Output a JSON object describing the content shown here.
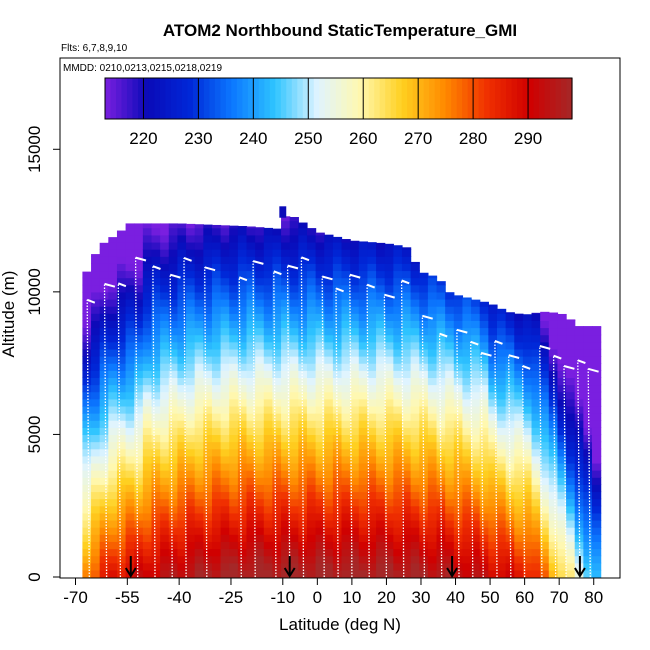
{
  "chart_data": {
    "type": "heatmap",
    "title": "ATOM2 Northbound StaticTemperature_GMI",
    "subtitle_flights": "Flts: 6,7,8,9,10",
    "subtitle_dates": "MMDD: 0210,0213,0215,0218,0219",
    "xlabel": "Latitude (deg N)",
    "ylabel": "Altitude (m)",
    "xlim": [
      -70,
      85
    ],
    "ylim": [
      0,
      17500
    ],
    "x_ticks": [
      -70,
      -55,
      -40,
      -25,
      -10,
      0,
      10,
      20,
      30,
      40,
      50,
      60,
      70,
      80
    ],
    "y_ticks": [
      0,
      5000,
      10000,
      15000
    ],
    "colorbar": {
      "range": [
        213,
        298
      ],
      "ticks": [
        220,
        230,
        240,
        250,
        260,
        270,
        280,
        290
      ],
      "colors": [
        "#7a1fe0",
        "#0a0ab8",
        "#0028d8",
        "#0c78ff",
        "#2ec4ff",
        "#dff4ff",
        "#fff8b0",
        "#ffd020",
        "#ff8a00",
        "#f03000",
        "#d00000",
        "#a52828"
      ]
    },
    "curtain_top_profile": {
      "lat": [
        -67.5,
        -65,
        -62,
        -57,
        -56,
        -55,
        -40,
        -20,
        -10,
        -9,
        0,
        10,
        20,
        25,
        27,
        28,
        30,
        35,
        38,
        40,
        50,
        55,
        60,
        65,
        67,
        72,
        75,
        80
      ],
      "alt": [
        10500,
        11200,
        11700,
        12100,
        12300,
        12400,
        12400,
        12300,
        12200,
        12800,
        12100,
        11800,
        11700,
        11600,
        11500,
        11100,
        10700,
        10500,
        10000,
        9900,
        9600,
        9300,
        9200,
        9300,
        9300,
        9200,
        8800,
        8800
      ]
    },
    "turnaround_markers_lat": [
      -54,
      -8,
      39,
      76
    ],
    "flight_profile_lats": [
      -66,
      -61,
      -57,
      -52,
      -47,
      -42,
      -38,
      -32,
      -22,
      -18,
      -12,
      -8,
      -4,
      2,
      6,
      10,
      15,
      20,
      25,
      31,
      36,
      41,
      45,
      48,
      52,
      56,
      60,
      65,
      69,
      72,
      76,
      79
    ]
  }
}
